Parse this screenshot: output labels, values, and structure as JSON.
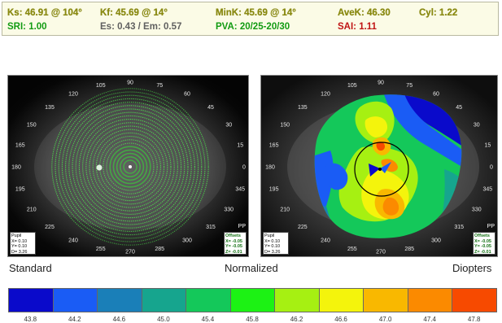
{
  "readout": {
    "ks": "Ks: 46.91 @ 104°",
    "kf": "Kf: 45.69 @ 14°",
    "mink": "MinK: 45.69 @ 14°",
    "avek": "AveK: 46.30",
    "cyl": "Cyl: 1.22",
    "sri": "SRI: 1.00",
    "es_em": "Es: 0.43 / Em: 0.57",
    "pva": "PVA: 20/25-20/30",
    "sai": "SAI: 1.11"
  },
  "left_panel": {
    "title": "Placido rings image",
    "pupil_box": {
      "title": "Pupil",
      "x": "X= 0.10",
      "y": "Y= 0.10",
      "d": "D= 3.26"
    },
    "offsets_box": {
      "title": "Offsets",
      "x": "X= -0.05",
      "y": "Y= -0.05",
      "z": "Z= -0.01"
    },
    "pp": "PP"
  },
  "right_panel": {
    "title": "Axial curvature map",
    "pupil_box": {
      "title": "Pupil",
      "x": "X= 0.10",
      "y": "Y= 0.10",
      "d": "D= 3.26"
    },
    "offsets_box": {
      "title": "Offsets",
      "x": "X= -0.05",
      "y": "Y= -0.05",
      "z": "Z= -0.01"
    },
    "pp": "PP"
  },
  "axis_labels": [
    "0",
    "15",
    "30",
    "45",
    "60",
    "75",
    "90",
    "105",
    "120",
    "135",
    "150",
    "165",
    "180",
    "195",
    "210",
    "225",
    "240",
    "255",
    "270",
    "285",
    "300",
    "315",
    "330",
    "345"
  ],
  "captions": {
    "standard": "Standard",
    "normalized": "Normalized",
    "diopters": "Diopters"
  },
  "scale": {
    "values": [
      "43.8",
      "44.2",
      "44.6",
      "45.0",
      "45.4",
      "45.8",
      "46.2",
      "46.6",
      "47.0",
      "47.4",
      "47.8"
    ],
    "colors": [
      "#0a0acb",
      "#1a5cf5",
      "#1a7fb8",
      "#16a58e",
      "#14c85a",
      "#1cf214",
      "#a6f012",
      "#f4f40c",
      "#f9b800",
      "#fb8a00",
      "#f74a00"
    ]
  }
}
